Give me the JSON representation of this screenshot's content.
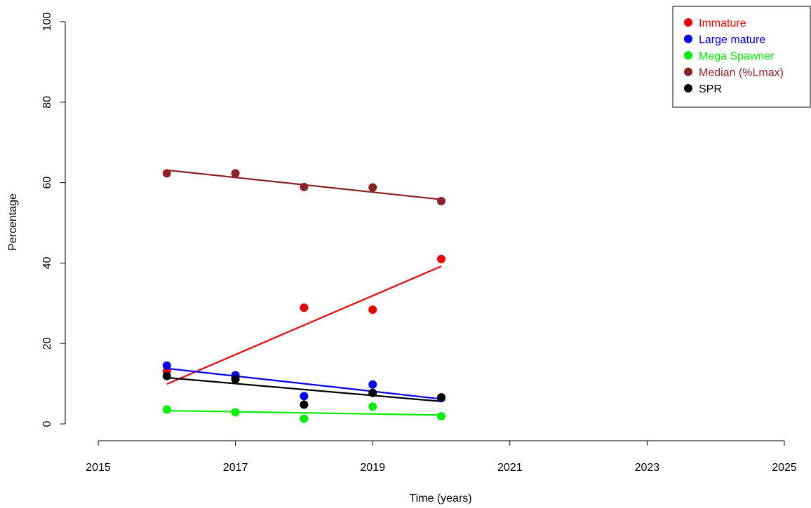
{
  "chart_data": {
    "type": "scatter",
    "xlabel": "Time (years)",
    "ylabel": "Percentage",
    "xlim": [
      2015,
      2025
    ],
    "ylim": [
      0,
      100
    ],
    "x_ticks": [
      "2015",
      "2017",
      "2019",
      "2021",
      "2023",
      "2025"
    ],
    "y_ticks": [
      "0",
      "20",
      "40",
      "60",
      "80",
      "100"
    ],
    "legend_position": "top-right",
    "grid": false,
    "x": [
      2016,
      2017,
      2018,
      2019,
      2020
    ],
    "series": [
      {
        "name": "Immature",
        "color": "#ee0000",
        "values": [
          13.1,
          11.6,
          28.9,
          28.4,
          41.0
        ],
        "trend": [
          9.9,
          39.2
        ]
      },
      {
        "name": "Large mature",
        "color": "#0000ee",
        "values": [
          14.5,
          12.1,
          6.9,
          9.8,
          6.4
        ],
        "trend": [
          13.8,
          6.2
        ]
      },
      {
        "name": "Mega Spawner",
        "color": "#00ee00",
        "values": [
          3.6,
          2.9,
          1.3,
          4.3,
          1.9
        ],
        "trend": [
          3.3,
          2.2
        ]
      },
      {
        "name": "Median (%Lmax)",
        "color": "#8b2323",
        "values": [
          62.3,
          62.3,
          58.9,
          58.8,
          55.4
        ],
        "trend": [
          63.1,
          55.8
        ]
      },
      {
        "name": "SPR",
        "color": "#000000",
        "values": [
          11.9,
          11.1,
          4.8,
          7.7,
          6.6
        ],
        "trend": [
          11.5,
          5.6
        ]
      }
    ]
  }
}
